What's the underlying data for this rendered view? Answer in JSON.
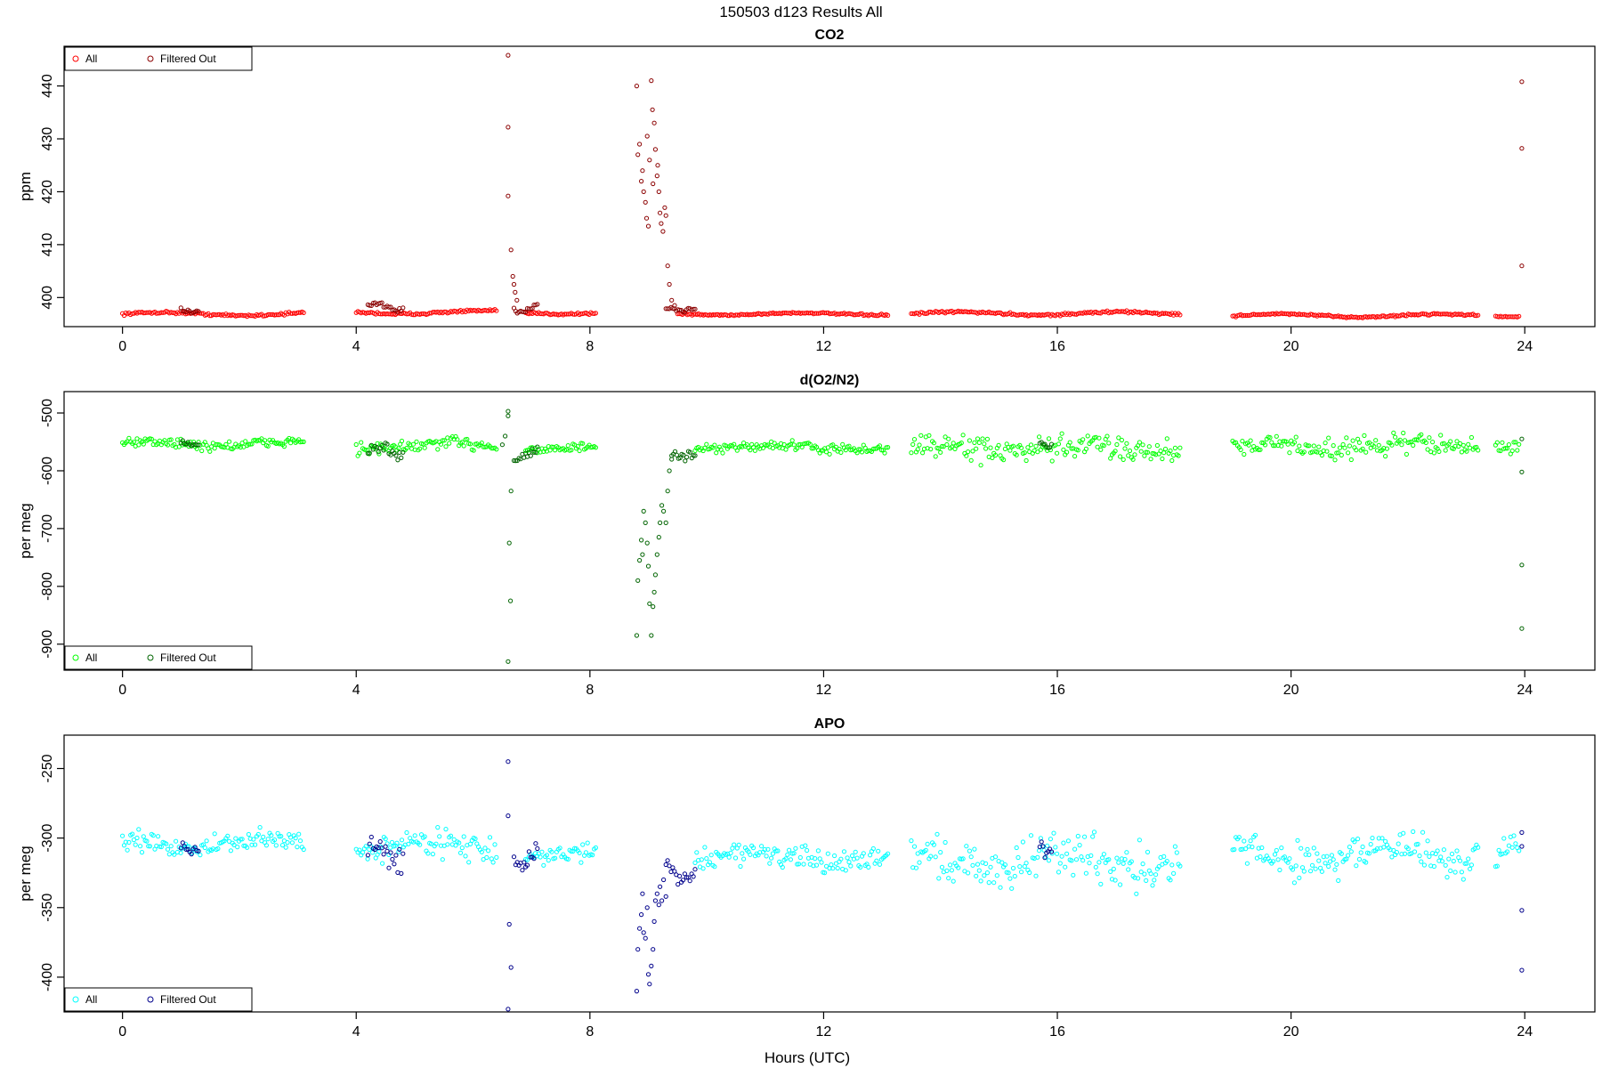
{
  "page": {
    "title": "150503   d123   Results All",
    "xlabel": "Hours (UTC)"
  },
  "chart_data": [
    {
      "type": "scatter",
      "title": "CO2",
      "ylabel": "ppm",
      "xlim": [
        -1,
        25.2
      ],
      "ylim": [
        394.5,
        447.5
      ],
      "xticks": [
        "0",
        "4",
        "8",
        "12",
        "16",
        "20",
        "24"
      ],
      "xtick_values": [
        0,
        4,
        8,
        12,
        16,
        20,
        24
      ],
      "yticks": [
        "400",
        "410",
        "420",
        "430",
        "440"
      ],
      "ytick_values": [
        400,
        410,
        420,
        430,
        440
      ],
      "legend": {
        "position": "top-left",
        "entries": [
          "All",
          "Filtered Out"
        ]
      },
      "colors": {
        "all": "#ff0000",
        "filtered": "#8b0000"
      },
      "segments": [
        {
          "x": [
            0.0,
            3.1
          ],
          "base": 396.9,
          "amp": 0.3,
          "noise": 0.2
        },
        {
          "x": [
            4.0,
            6.4
          ],
          "base": 397.2,
          "amp": 0.3,
          "noise": 0.2
        },
        {
          "x": [
            6.9,
            8.1
          ],
          "base": 397.1,
          "amp": 0.2,
          "noise": 0.2
        },
        {
          "x": [
            9.5,
            13.1
          ],
          "base": 396.9,
          "amp": 0.2,
          "noise": 0.15
        },
        {
          "x": [
            13.5,
            18.1
          ],
          "base": 397.0,
          "amp": 0.3,
          "noise": 0.2
        },
        {
          "x": [
            19.0,
            23.2
          ],
          "base": 396.6,
          "amp": 0.3,
          "noise": 0.15
        },
        {
          "x": [
            23.5,
            23.9
          ],
          "base": 396.5,
          "amp": 0.1,
          "noise": 0.1
        }
      ],
      "filtered_segments": [
        {
          "x": [
            1.0,
            1.3
          ],
          "base": 397.6,
          "amp": 0.4,
          "noise": 0.3
        },
        {
          "x": [
            4.2,
            4.8
          ],
          "base": 398.2,
          "amp": 0.6,
          "noise": 0.4
        },
        {
          "x": [
            6.7,
            7.1
          ],
          "base": 398.0,
          "amp": 0.6,
          "noise": 0.4
        },
        {
          "x": [
            9.3,
            9.8
          ],
          "base": 397.8,
          "amp": 0.3,
          "noise": 0.3
        }
      ],
      "filtered_points": [
        [
          6.6,
          445.8
        ],
        [
          6.6,
          432.2
        ],
        [
          6.6,
          419.2
        ],
        [
          6.65,
          409.0
        ],
        [
          6.68,
          404.0
        ],
        [
          6.7,
          402.5
        ],
        [
          6.72,
          401.0
        ],
        [
          6.75,
          399.5
        ],
        [
          8.8,
          440.0
        ],
        [
          8.85,
          429.0
        ],
        [
          8.9,
          424.0
        ],
        [
          8.92,
          420.0
        ],
        [
          8.95,
          418.0
        ],
        [
          8.97,
          415.0
        ],
        [
          9.0,
          413.5
        ],
        [
          9.02,
          426.0
        ],
        [
          9.05,
          441.0
        ],
        [
          9.07,
          435.5
        ],
        [
          9.1,
          433.0
        ],
        [
          9.12,
          428.0
        ],
        [
          9.15,
          423.0
        ],
        [
          9.18,
          420.0
        ],
        [
          9.2,
          416.0
        ],
        [
          9.22,
          414.0
        ],
        [
          9.25,
          412.5
        ],
        [
          9.28,
          417.0
        ],
        [
          9.3,
          415.5
        ],
        [
          9.33,
          406.0
        ],
        [
          9.36,
          402.5
        ],
        [
          9.4,
          399.5
        ],
        [
          9.45,
          398.5
        ],
        [
          8.82,
          427.0
        ],
        [
          8.88,
          422.0
        ],
        [
          8.98,
          430.5
        ],
        [
          9.08,
          421.5
        ],
        [
          9.16,
          425.0
        ],
        [
          23.95,
          440.8
        ],
        [
          23.95,
          428.2
        ],
        [
          23.95,
          406.0
        ]
      ]
    },
    {
      "type": "scatter",
      "title": "d(O2/N2)",
      "ylabel": "per meg",
      "xlim": [
        -1,
        25.2
      ],
      "ylim": [
        -945,
        -463
      ],
      "xticks": [
        "0",
        "4",
        "8",
        "12",
        "16",
        "20",
        "24"
      ],
      "xtick_values": [
        0,
        4,
        8,
        12,
        16,
        20,
        24
      ],
      "yticks": [
        "-900",
        "-800",
        "-700",
        "-600",
        "-500"
      ],
      "ytick_values": [
        -900,
        -800,
        -700,
        -600,
        -500
      ],
      "legend": {
        "position": "bottom-left",
        "entries": [
          "All",
          "Filtered Out"
        ]
      },
      "colors": {
        "all": "#00ff00",
        "filtered": "#006400"
      },
      "segments": [
        {
          "x": [
            0.0,
            3.1
          ],
          "base": -553,
          "amp": 4,
          "noise": 8
        },
        {
          "x": [
            4.0,
            6.4
          ],
          "base": -557,
          "amp": 5,
          "noise": 10
        },
        {
          "x": [
            6.9,
            8.1
          ],
          "base": -560,
          "amp": 3,
          "noise": 6
        },
        {
          "x": [
            9.8,
            13.1
          ],
          "base": -560,
          "amp": 4,
          "noise": 7
        },
        {
          "x": [
            13.5,
            18.1
          ],
          "base": -562,
          "amp": 6,
          "noise": 18
        },
        {
          "x": [
            19.0,
            23.2
          ],
          "base": -557,
          "amp": 5,
          "noise": 15
        },
        {
          "x": [
            23.5,
            23.9
          ],
          "base": -555,
          "amp": 5,
          "noise": 12
        }
      ],
      "filtered_segments": [
        {
          "x": [
            1.0,
            1.3
          ],
          "base": -552,
          "amp": 4,
          "noise": 4
        },
        {
          "x": [
            4.2,
            4.8
          ],
          "base": -565,
          "amp": 8,
          "noise": 8
        },
        {
          "x": [
            6.7,
            7.1
          ],
          "base": -570,
          "amp": 8,
          "noise": 8
        },
        {
          "x": [
            9.4,
            9.8
          ],
          "base": -570,
          "amp": 6,
          "noise": 6
        },
        {
          "x": [
            15.7,
            15.9
          ],
          "base": -553,
          "amp": 5,
          "noise": 5
        }
      ],
      "filtered_points": [
        [
          6.6,
          -497
        ],
        [
          6.6,
          -505
        ],
        [
          6.65,
          -635
        ],
        [
          6.62,
          -725
        ],
        [
          6.64,
          -825
        ],
        [
          6.6,
          -930
        ],
        [
          6.55,
          -540
        ],
        [
          6.5,
          -555
        ],
        [
          8.8,
          -885
        ],
        [
          8.82,
          -790
        ],
        [
          8.85,
          -755
        ],
        [
          8.88,
          -720
        ],
        [
          8.9,
          -745
        ],
        [
          8.92,
          -670
        ],
        [
          8.95,
          -690
        ],
        [
          8.98,
          -725
        ],
        [
          9.0,
          -765
        ],
        [
          9.02,
          -830
        ],
        [
          9.05,
          -885
        ],
        [
          9.08,
          -835
        ],
        [
          9.1,
          -810
        ],
        [
          9.12,
          -780
        ],
        [
          9.15,
          -745
        ],
        [
          9.18,
          -715
        ],
        [
          9.2,
          -690
        ],
        [
          9.23,
          -660
        ],
        [
          9.26,
          -670
        ],
        [
          9.3,
          -690
        ],
        [
          9.33,
          -635
        ],
        [
          9.36,
          -600
        ],
        [
          9.4,
          -580
        ],
        [
          23.95,
          -545
        ],
        [
          23.95,
          -602
        ],
        [
          23.95,
          -763
        ],
        [
          23.95,
          -873
        ]
      ]
    },
    {
      "type": "scatter",
      "title": "APO",
      "ylabel": "per meg",
      "xlim": [
        -1,
        25.2
      ],
      "ylim": [
        -425,
        -226
      ],
      "xticks": [
        "0",
        "4",
        "8",
        "12",
        "16",
        "20",
        "24"
      ],
      "xtick_values": [
        0,
        4,
        8,
        12,
        16,
        20,
        24
      ],
      "yticks": [
        "-400",
        "-350",
        "-300",
        "-250"
      ],
      "ytick_values": [
        -400,
        -350,
        -300,
        -250
      ],
      "legend": {
        "position": "bottom-left",
        "entries": [
          "All",
          "Filtered Out"
        ]
      },
      "colors": {
        "all": "#00ffff",
        "filtered": "#00008b"
      },
      "segments": [
        {
          "x": [
            0.0,
            3.1
          ],
          "base": -304,
          "amp": 3,
          "noise": 6
        },
        {
          "x": [
            4.0,
            6.4
          ],
          "base": -306,
          "amp": 4,
          "noise": 8
        },
        {
          "x": [
            6.9,
            8.1
          ],
          "base": -313,
          "amp": 3,
          "noise": 5
        },
        {
          "x": [
            9.8,
            13.1
          ],
          "base": -314,
          "amp": 4,
          "noise": 7
        },
        {
          "x": [
            13.5,
            18.1
          ],
          "base": -316,
          "amp": 6,
          "noise": 14
        },
        {
          "x": [
            19.0,
            23.2
          ],
          "base": -312,
          "amp": 5,
          "noise": 12
        },
        {
          "x": [
            23.5,
            23.9
          ],
          "base": -310,
          "amp": 4,
          "noise": 10
        }
      ],
      "filtered_segments": [
        {
          "x": [
            1.0,
            1.3
          ],
          "base": -305,
          "amp": 4,
          "noise": 4
        },
        {
          "x": [
            4.2,
            4.8
          ],
          "base": -310,
          "amp": 6,
          "noise": 7
        },
        {
          "x": [
            6.7,
            7.1
          ],
          "base": -314,
          "amp": 5,
          "noise": 5
        },
        {
          "x": [
            9.3,
            9.8
          ],
          "base": -325,
          "amp": 6,
          "noise": 4
        },
        {
          "x": [
            15.7,
            15.9
          ],
          "base": -306,
          "amp": 4,
          "noise": 4
        }
      ],
      "filtered_points": [
        [
          6.6,
          -245
        ],
        [
          6.6,
          -284
        ],
        [
          6.62,
          -362
        ],
        [
          6.65,
          -393
        ],
        [
          6.6,
          -423
        ],
        [
          8.8,
          -410
        ],
        [
          8.82,
          -380
        ],
        [
          8.85,
          -365
        ],
        [
          8.88,
          -355
        ],
        [
          8.9,
          -340
        ],
        [
          8.92,
          -368
        ],
        [
          8.95,
          -372
        ],
        [
          8.98,
          -350
        ],
        [
          9.0,
          -398
        ],
        [
          9.02,
          -405
        ],
        [
          9.05,
          -392
        ],
        [
          9.08,
          -380
        ],
        [
          9.1,
          -360
        ],
        [
          9.12,
          -345
        ],
        [
          9.15,
          -340
        ],
        [
          9.18,
          -348
        ],
        [
          9.2,
          -335
        ],
        [
          9.23,
          -345
        ],
        [
          9.26,
          -330
        ],
        [
          9.3,
          -342
        ],
        [
          23.95,
          -296
        ],
        [
          23.95,
          -306
        ],
        [
          23.95,
          -352
        ],
        [
          23.95,
          -395
        ]
      ]
    }
  ]
}
